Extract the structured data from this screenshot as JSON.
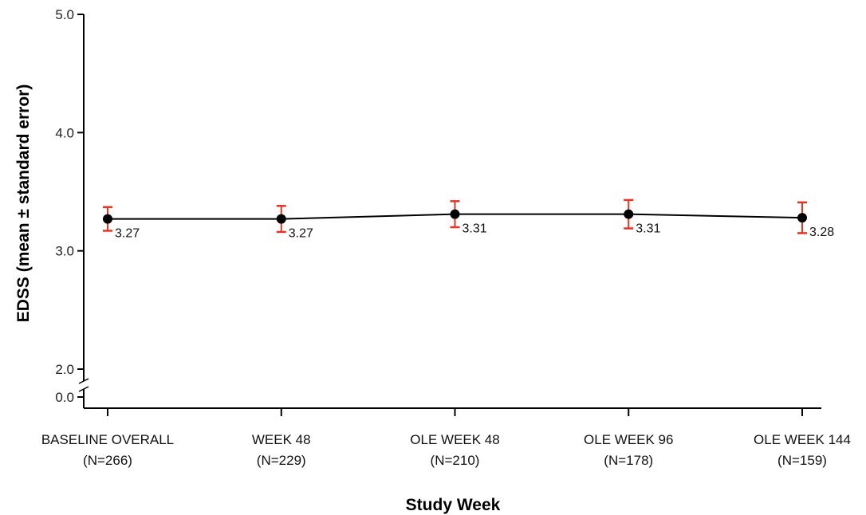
{
  "chart_data": {
    "type": "line",
    "xlabel": "Study Week",
    "ylabel": "EDSS (mean ± standard error)",
    "categories": [
      {
        "name": "BASELINE OVERALL",
        "n": "(N=266)"
      },
      {
        "name": "WEEK 48",
        "n": "(N=229)"
      },
      {
        "name": "OLE WEEK 48",
        "n": "(N=210)"
      },
      {
        "name": "OLE WEEK 96",
        "n": "(N=178)"
      },
      {
        "name": "OLE WEEK 144",
        "n": "(N=159)"
      }
    ],
    "values": [
      3.27,
      3.27,
      3.31,
      3.31,
      3.28
    ],
    "value_labels": [
      "3.27",
      "3.27",
      "3.31",
      "3.31",
      "3.28"
    ],
    "error": [
      0.1,
      0.11,
      0.11,
      0.12,
      0.13
    ],
    "y_ticks": [
      "0.0",
      "2.0",
      "3.0",
      "4.0",
      "5.0"
    ],
    "ylim": [
      2.0,
      5.0
    ],
    "y_axis_break": "between 0.0 and 2.0",
    "grid": false,
    "colors": {
      "line": "#000000",
      "marker": "#000000",
      "error_bar": "#e8331f"
    }
  }
}
